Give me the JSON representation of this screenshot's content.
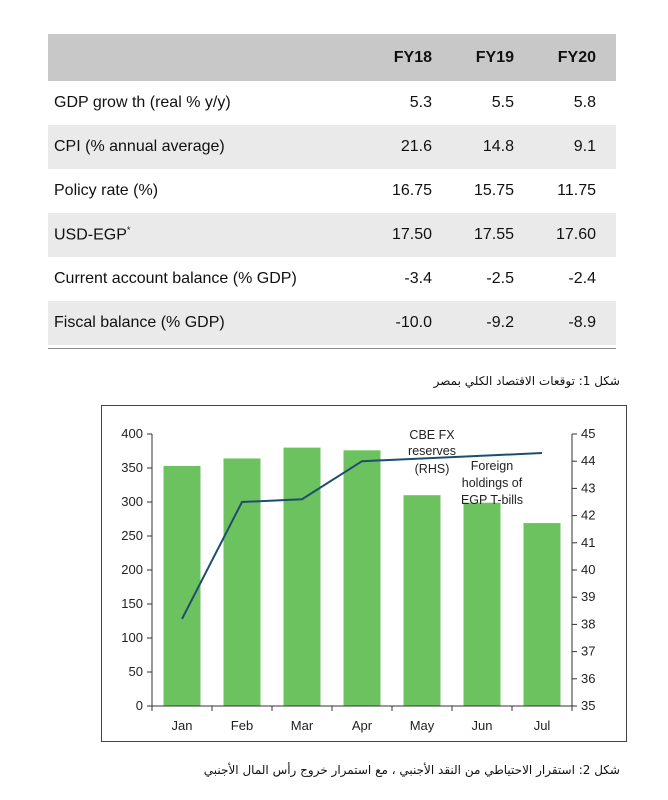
{
  "table": {
    "headers": [
      "",
      "FY18",
      "FY19",
      "FY20"
    ],
    "rows": [
      {
        "label": "GDP grow th (real % y/y)",
        "values": [
          "5.3",
          "5.5",
          "5.8"
        ]
      },
      {
        "label": "CPI (% annual average)",
        "values": [
          "21.6",
          "14.8",
          "9.1"
        ]
      },
      {
        "label": "Policy rate (%)",
        "values": [
          "16.75",
          "15.75",
          "11.75"
        ]
      },
      {
        "label": "USD-EGP",
        "sup": "*",
        "values": [
          "17.50",
          "17.55",
          "17.60"
        ]
      },
      {
        "label": "Current account balance (% GDP)",
        "values": [
          "-3.4",
          "-2.5",
          "-2.4"
        ]
      },
      {
        "label": "Fiscal balance (% GDP)",
        "values": [
          "-10.0",
          "-9.2",
          "-8.9"
        ]
      }
    ]
  },
  "captions": {
    "figure1": "شكل 1: توقعات الاقتصاد الكلي بمصر",
    "figure2": "شكل 2: استقرار الاحتياطي من النقد الأجنبي ، مع استمرار خروج رأس المال الأجنبي"
  },
  "chart_data": {
    "type": "bar",
    "categories": [
      "Jan",
      "Feb",
      "Mar",
      "Apr",
      "May",
      "Jun",
      "Jul"
    ],
    "series": [
      {
        "name": "Foreign holdings of EGP T-bills",
        "type": "bar",
        "axis": "left",
        "color": "#6cc25f",
        "values": [
          353,
          364,
          380,
          376,
          310,
          299,
          269
        ]
      },
      {
        "name": "CBE FX reserves (RHS)",
        "type": "line",
        "axis": "right",
        "color": "#1d4e6e",
        "values": [
          38.2,
          42.5,
          42.6,
          44.0,
          44.1,
          44.2,
          44.3
        ]
      }
    ],
    "left_axis": {
      "min": 0,
      "max": 400,
      "ticks": [
        0,
        50,
        100,
        150,
        200,
        250,
        300,
        350,
        400
      ]
    },
    "right_axis": {
      "min": 35,
      "max": 45,
      "ticks": [
        35,
        36,
        37,
        38,
        39,
        40,
        41,
        42,
        43,
        44,
        45
      ]
    },
    "annotations": {
      "reserves_label": [
        "CBE FX",
        "reserves",
        "(RHS)"
      ],
      "holdings_label": [
        "Foreign",
        "holdings of",
        "EGP T-bills"
      ]
    },
    "gridlines": false
  },
  "colors": {
    "header_bg": "#c8c8c8",
    "row_alt_bg": "#eaeaea",
    "bar": "#6cc25f",
    "line": "#1d4e6e"
  }
}
